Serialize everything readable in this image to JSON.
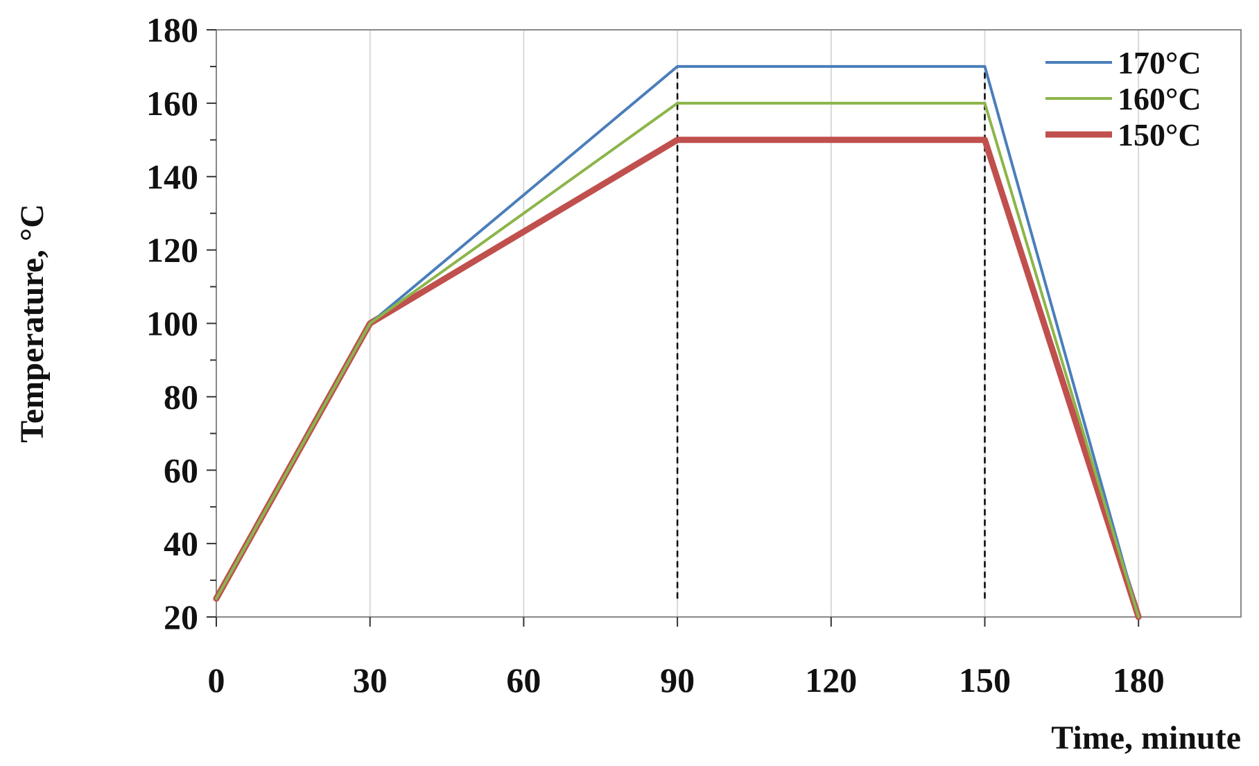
{
  "chart_data": {
    "type": "line",
    "xlabel": "Time, minute",
    "ylabel": "Temperature, °C",
    "xlim": [
      0,
      200
    ],
    "ylim": [
      20,
      180
    ],
    "x_ticks": [
      0,
      30,
      60,
      90,
      120,
      150,
      180
    ],
    "y_ticks": [
      20,
      40,
      60,
      80,
      100,
      120,
      140,
      160,
      180
    ],
    "grid": "vertical",
    "legend": "top-right",
    "series": [
      {
        "name": "170°C",
        "color": "#4a7ebb",
        "width": 4,
        "points": [
          [
            0,
            25
          ],
          [
            30,
            100
          ],
          [
            90,
            170
          ],
          [
            150,
            170
          ],
          [
            180,
            20
          ]
        ]
      },
      {
        "name": "160°C",
        "color": "#8cb54a",
        "width": 4,
        "points": [
          [
            0,
            25
          ],
          [
            30,
            100
          ],
          [
            90,
            160
          ],
          [
            150,
            160
          ],
          [
            180,
            20
          ]
        ]
      },
      {
        "name": "150°C",
        "color": "#c0504d",
        "width": 9,
        "points": [
          [
            0,
            25
          ],
          [
            30,
            100
          ],
          [
            90,
            150
          ],
          [
            150,
            150
          ],
          [
            180,
            20
          ]
        ]
      }
    ],
    "reference_lines": [
      {
        "x": 90,
        "y_from": 25,
        "y_to": 170,
        "style": "dashed",
        "color": "#000000"
      },
      {
        "x": 150,
        "y_from": 25,
        "y_to": 170,
        "style": "dashed",
        "color": "#000000"
      }
    ]
  }
}
